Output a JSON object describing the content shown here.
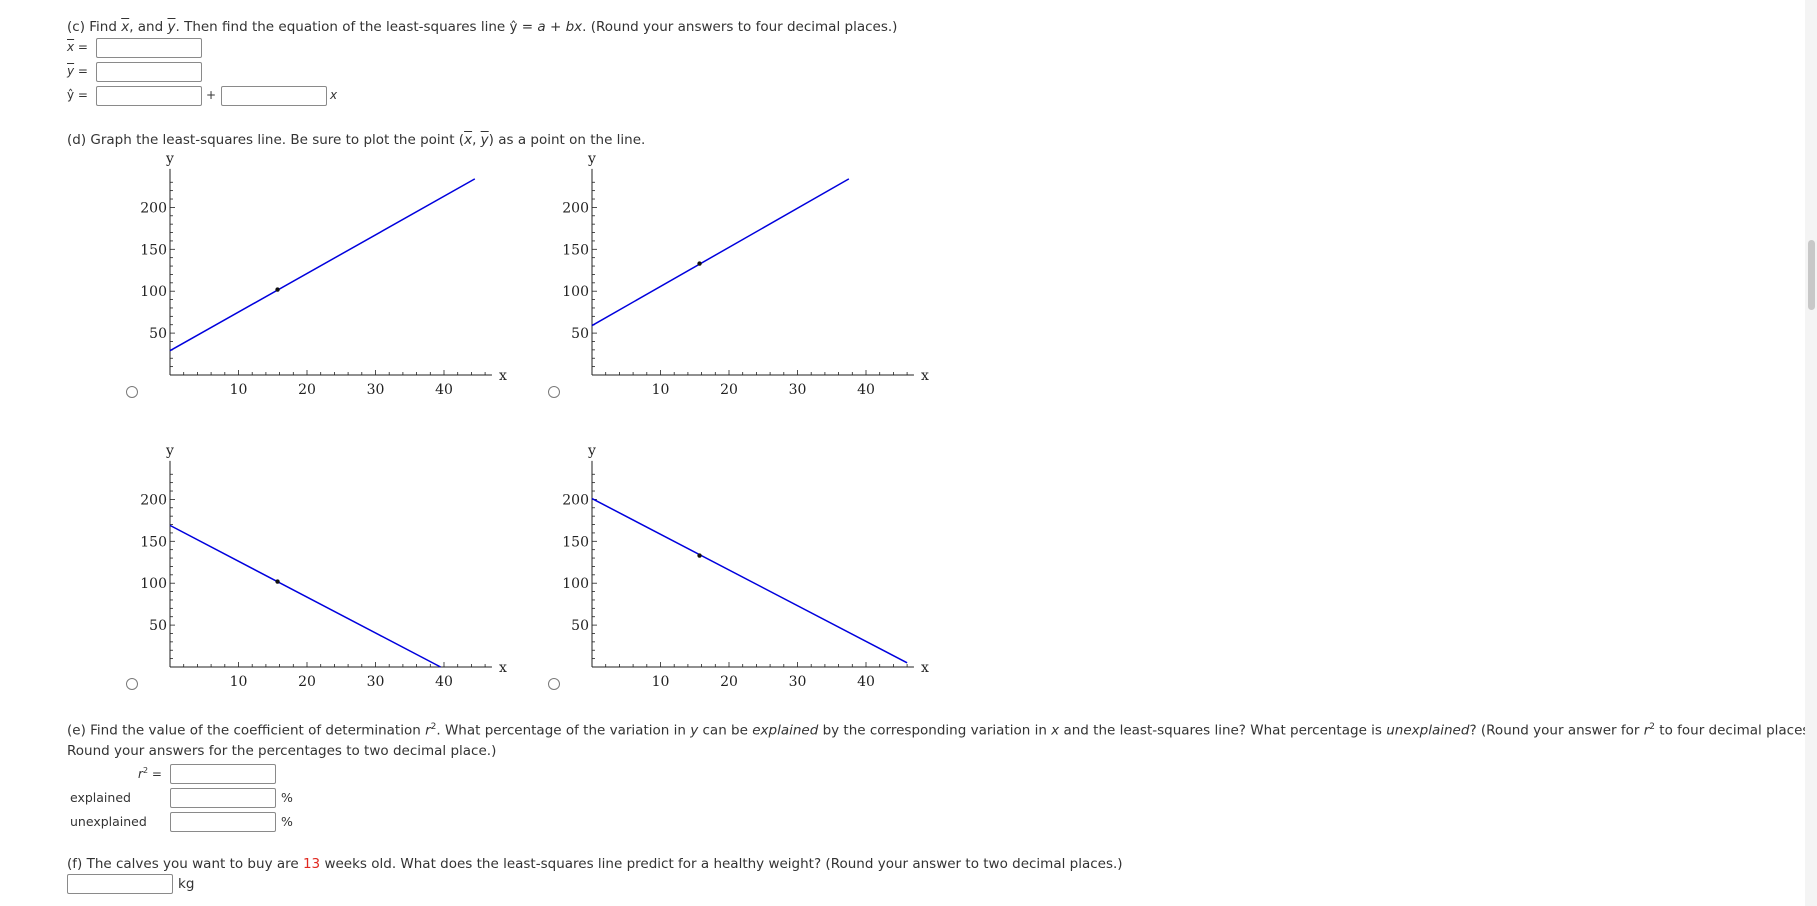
{
  "part_c": {
    "prefix": "(c) Find ",
    "x_bar": "x",
    "and": ", and ",
    "y_bar": "y",
    "middle": ". Then find the equation of the least-squares line ",
    "yhat_eq": "ŷ = ",
    "a": "a",
    "plus_b": " + ",
    "bx": "bx",
    "suffix": ". (Round your answers to four decimal places.)",
    "xbar_label": "x",
    "ybar_label": "y",
    "yhat_label": "ŷ",
    "equals": " =",
    "plus": "+",
    "x_var": "x",
    "xbar_value": "",
    "ybar_value": "",
    "a_value": "",
    "b_value": ""
  },
  "part_d": {
    "prefix": "(d) Graph the least-squares line. Be sure to plot the point (",
    "x": "x",
    "comma": ", ",
    "y": "y",
    "suffix": ") as a point on the line."
  },
  "graphs": [
    {
      "id": "a",
      "y_label": "y",
      "x_label": "x",
      "x_ticks": [
        "10",
        "20",
        "30",
        "40"
      ],
      "y_ticks": [
        "50",
        "100",
        "150",
        "200"
      ]
    },
    {
      "id": "b",
      "y_label": "y",
      "x_label": "x",
      "x_ticks": [
        "10",
        "20",
        "30",
        "40"
      ],
      "y_ticks": [
        "50",
        "100",
        "150",
        "200"
      ]
    },
    {
      "id": "c",
      "y_label": "y",
      "x_label": "x",
      "x_ticks": [
        "10",
        "20",
        "30",
        "40"
      ],
      "y_ticks": [
        "50",
        "100",
        "150",
        "200"
      ]
    },
    {
      "id": "d",
      "y_label": "y",
      "x_label": "x",
      "x_ticks": [
        "10",
        "20",
        "30",
        "40"
      ],
      "y_ticks": [
        "50",
        "100",
        "150",
        "200"
      ]
    }
  ],
  "graph_lines": [
    {
      "x1": 0,
      "y1": 29,
      "x2": 44.5,
      "y2": 234,
      "pt_x": 15.7,
      "pt_y": 102
    },
    {
      "x1": 0,
      "y1": 59,
      "x2": 37.5,
      "y2": 234,
      "pt_x": 15.7,
      "pt_y": 133
    },
    {
      "x1": 0,
      "y1": 169,
      "x2": 39.5,
      "y2": 0,
      "pt_x": 15.7,
      "pt_y": 102
    },
    {
      "x1": 0,
      "y1": 201,
      "x2": 46,
      "y2": 5,
      "pt_x": 15.7,
      "pt_y": 133
    }
  ],
  "line_color": "#0000dd",
  "part_e": {
    "line1_a": "(e) Find the value of the coefficient of determination ",
    "r": "r",
    "sup2": "2",
    "line1_b": ". What percentage of the variation in ",
    "y": "y",
    "line1_c": " can be ",
    "explained_em": "explained",
    "line1_d": " by the corresponding variation in ",
    "x": "x",
    "line1_e": " and the least-squares line? What percentage is ",
    "unexplained_em": "unexplained",
    "line1_f": "? (Round your answer for ",
    "line1_g": " to four decimal places.",
    "line2": "Round your answers for the percentages to two decimal place.)",
    "r2_equals": " =",
    "explained_label": "explained",
    "unexplained_label": "unexplained",
    "percent": "%",
    "r2_value": "",
    "explained_value": "",
    "unexplained_value": ""
  },
  "part_f": {
    "prefix": "(f) The calves you want to buy are ",
    "weeks": "13",
    "suffix": " weeks old. What does the least-squares line predict for a healthy weight? (Round your answer to two decimal places.)",
    "unit": "kg",
    "value": ""
  }
}
